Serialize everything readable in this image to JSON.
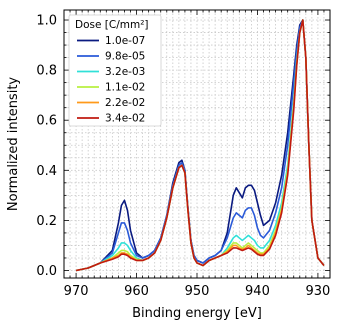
{
  "chart_data": {
    "type": "line",
    "xlabel": "Binding energy [eV]",
    "ylabel": "Normalized intensity",
    "xlim": [
      972,
      928
    ],
    "ylim": [
      -0.03,
      1.04
    ],
    "x_ticks": [
      970,
      960,
      950,
      940,
      930
    ],
    "y_ticks": [
      0.0,
      0.2,
      0.4,
      0.6,
      0.8,
      1.0
    ],
    "x_minor_step": 1,
    "y_minor_step": 0.05,
    "grid": true,
    "legend": {
      "title": "Dose [C/mm²]",
      "placement": "top-left"
    },
    "series": [
      {
        "name": "1.0e-07",
        "color": "#0a1a80",
        "x": [
          970,
          968,
          966,
          964,
          963,
          962.5,
          962,
          961.5,
          961,
          960,
          959,
          958,
          957,
          956,
          955,
          954,
          953,
          952.5,
          952,
          951.5,
          951,
          950.5,
          950,
          949,
          948,
          947,
          946,
          945,
          944,
          943.5,
          943,
          942.5,
          942,
          941.5,
          941,
          940.5,
          940,
          939.5,
          939,
          938,
          937,
          936,
          935,
          934,
          933.5,
          933,
          932.5,
          932,
          931.5,
          931,
          930,
          929
        ],
        "y": [
          0.0,
          0.01,
          0.03,
          0.08,
          0.19,
          0.26,
          0.28,
          0.24,
          0.16,
          0.07,
          0.05,
          0.06,
          0.08,
          0.13,
          0.22,
          0.35,
          0.43,
          0.44,
          0.4,
          0.25,
          0.12,
          0.06,
          0.04,
          0.03,
          0.05,
          0.06,
          0.08,
          0.15,
          0.3,
          0.33,
          0.31,
          0.29,
          0.33,
          0.34,
          0.34,
          0.32,
          0.27,
          0.22,
          0.18,
          0.2,
          0.27,
          0.38,
          0.55,
          0.78,
          0.9,
          0.98,
          1.0,
          0.85,
          0.5,
          0.2,
          0.05,
          0.02
        ]
      },
      {
        "name": "9.8e-05",
        "color": "#2a5ad8",
        "x": [
          970,
          968,
          966,
          964,
          963,
          962.5,
          962,
          961.5,
          961,
          960,
          959,
          958,
          957,
          956,
          955,
          954,
          953,
          952.5,
          952,
          951.5,
          951,
          950.5,
          950,
          949,
          948,
          947,
          946,
          945,
          944,
          943.5,
          943,
          942.5,
          942,
          941.5,
          941,
          940.5,
          940,
          939.5,
          939,
          938,
          937,
          936,
          935,
          934,
          933.5,
          933,
          932.5,
          932,
          931.5,
          931,
          930,
          929
        ],
        "y": [
          0.0,
          0.01,
          0.03,
          0.07,
          0.15,
          0.19,
          0.19,
          0.16,
          0.11,
          0.06,
          0.05,
          0.06,
          0.08,
          0.13,
          0.22,
          0.34,
          0.42,
          0.43,
          0.4,
          0.25,
          0.12,
          0.06,
          0.04,
          0.03,
          0.05,
          0.06,
          0.08,
          0.13,
          0.21,
          0.23,
          0.22,
          0.21,
          0.24,
          0.25,
          0.25,
          0.22,
          0.17,
          0.14,
          0.13,
          0.16,
          0.23,
          0.33,
          0.5,
          0.75,
          0.88,
          0.97,
          1.0,
          0.85,
          0.5,
          0.2,
          0.05,
          0.02
        ]
      },
      {
        "name": "3.2e-03",
        "color": "#30e0d8",
        "x": [
          970,
          968,
          966,
          964,
          963,
          962.5,
          962,
          961.5,
          961,
          960,
          959,
          958,
          957,
          956,
          955,
          954,
          953,
          952.5,
          952,
          951.5,
          951,
          950.5,
          950,
          949,
          948,
          947,
          946,
          945,
          944,
          943.5,
          943,
          942.5,
          942,
          941.5,
          941,
          940.5,
          940,
          939.5,
          939,
          938,
          937,
          936,
          935,
          934,
          933.5,
          933,
          932.5,
          932,
          931.5,
          931,
          930,
          929
        ],
        "y": [
          0.0,
          0.01,
          0.03,
          0.06,
          0.09,
          0.11,
          0.11,
          0.1,
          0.08,
          0.05,
          0.04,
          0.05,
          0.07,
          0.12,
          0.21,
          0.33,
          0.41,
          0.42,
          0.39,
          0.24,
          0.11,
          0.05,
          0.03,
          0.02,
          0.04,
          0.05,
          0.06,
          0.09,
          0.13,
          0.14,
          0.13,
          0.12,
          0.13,
          0.14,
          0.13,
          0.12,
          0.1,
          0.09,
          0.09,
          0.12,
          0.18,
          0.27,
          0.42,
          0.68,
          0.84,
          0.95,
          1.0,
          0.85,
          0.5,
          0.2,
          0.05,
          0.02
        ]
      },
      {
        "name": "1.1e-02",
        "color": "#b8f040",
        "x": [
          970,
          968,
          966,
          964,
          963,
          962.5,
          962,
          961.5,
          961,
          960,
          959,
          958,
          957,
          956,
          955,
          954,
          953,
          952.5,
          952,
          951.5,
          951,
          950.5,
          950,
          949,
          948,
          947,
          946,
          945,
          944,
          943.5,
          943,
          942.5,
          942,
          941.5,
          941,
          940.5,
          940,
          939.5,
          939,
          938,
          937,
          936,
          935,
          934,
          933.5,
          933,
          932.5,
          932,
          931.5,
          931,
          930,
          929
        ],
        "y": [
          0.0,
          0.01,
          0.03,
          0.05,
          0.07,
          0.08,
          0.08,
          0.075,
          0.06,
          0.045,
          0.04,
          0.05,
          0.07,
          0.12,
          0.21,
          0.33,
          0.41,
          0.42,
          0.39,
          0.24,
          0.11,
          0.05,
          0.03,
          0.02,
          0.04,
          0.05,
          0.06,
          0.08,
          0.11,
          0.11,
          0.1,
          0.09,
          0.1,
          0.11,
          0.1,
          0.09,
          0.08,
          0.07,
          0.07,
          0.1,
          0.16,
          0.25,
          0.4,
          0.66,
          0.83,
          0.95,
          1.0,
          0.85,
          0.5,
          0.2,
          0.05,
          0.02
        ]
      },
      {
        "name": "2.2e-02",
        "color": "#ff9a1a",
        "x": [
          970,
          968,
          966,
          964,
          963,
          962.5,
          962,
          961.5,
          961,
          960,
          959,
          958,
          957,
          956,
          955,
          954,
          953,
          952.5,
          952,
          951.5,
          951,
          950.5,
          950,
          949,
          948,
          947,
          946,
          945,
          944,
          943.5,
          943,
          942.5,
          942,
          941.5,
          941,
          940.5,
          940,
          939.5,
          939,
          938,
          937,
          936,
          935,
          934,
          933.5,
          933,
          932.5,
          932,
          931.5,
          931,
          930,
          929
        ],
        "y": [
          0.0,
          0.01,
          0.03,
          0.05,
          0.06,
          0.07,
          0.07,
          0.065,
          0.055,
          0.04,
          0.04,
          0.05,
          0.07,
          0.12,
          0.21,
          0.33,
          0.41,
          0.42,
          0.39,
          0.24,
          0.11,
          0.05,
          0.03,
          0.02,
          0.04,
          0.05,
          0.06,
          0.075,
          0.1,
          0.1,
          0.09,
          0.085,
          0.09,
          0.1,
          0.09,
          0.08,
          0.07,
          0.065,
          0.065,
          0.09,
          0.15,
          0.24,
          0.39,
          0.65,
          0.82,
          0.95,
          1.0,
          0.85,
          0.5,
          0.2,
          0.05,
          0.02
        ]
      },
      {
        "name": "3.4e-02",
        "color": "#c01a10",
        "x": [
          970,
          968,
          966,
          964,
          963,
          962.5,
          962,
          961.5,
          961,
          960,
          959,
          958,
          957,
          956,
          955,
          954,
          953,
          952.5,
          952,
          951.5,
          951,
          950.5,
          950,
          949,
          948,
          947,
          946,
          945,
          944,
          943.5,
          943,
          942.5,
          942,
          941.5,
          941,
          940.5,
          940,
          939.5,
          939,
          938,
          937,
          936,
          935,
          934,
          933.5,
          933,
          932.5,
          932,
          931.5,
          931,
          930,
          929
        ],
        "y": [
          0.0,
          0.01,
          0.03,
          0.045,
          0.055,
          0.065,
          0.065,
          0.06,
          0.05,
          0.04,
          0.04,
          0.05,
          0.07,
          0.12,
          0.21,
          0.33,
          0.41,
          0.42,
          0.39,
          0.24,
          0.11,
          0.05,
          0.03,
          0.02,
          0.04,
          0.05,
          0.06,
          0.07,
          0.09,
          0.09,
          0.085,
          0.08,
          0.085,
          0.09,
          0.085,
          0.075,
          0.065,
          0.06,
          0.06,
          0.085,
          0.14,
          0.23,
          0.38,
          0.64,
          0.82,
          0.95,
          1.0,
          0.85,
          0.5,
          0.2,
          0.05,
          0.02
        ]
      }
    ]
  }
}
